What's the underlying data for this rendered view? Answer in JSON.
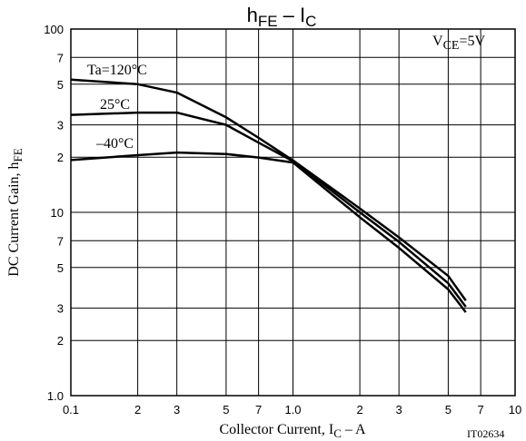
{
  "chart_data": {
    "type": "line",
    "title": [
      "h",
      "FE",
      " – I",
      "C"
    ],
    "x_label": [
      "Collector Current, I",
      "C",
      " – A"
    ],
    "y_label": [
      "DC Current Gain, h",
      "FE"
    ],
    "annotations": [
      [
        "V",
        "CE",
        "=5V"
      ],
      [
        "IT02634"
      ]
    ],
    "xlog": true,
    "ylog": true,
    "grid": true,
    "xlim": [
      0.1,
      10
    ],
    "ylim": [
      1,
      100
    ],
    "xticks": [
      0.1,
      {
        "value": 0.2,
        "label": "2"
      },
      {
        "value": 0.3,
        "label": "3"
      },
      {
        "value": 0.5,
        "label": "5"
      },
      {
        "value": 0.7,
        "label": "7"
      },
      {
        "value": 1,
        "label": "1.0"
      },
      2,
      3,
      5,
      7,
      10
    ],
    "yticks": [
      {
        "value": 1,
        "label": "1.0"
      },
      2,
      3,
      5,
      7,
      10,
      {
        "value": 20,
        "label": "2"
      },
      {
        "value": 30,
        "label": "3"
      },
      {
        "value": 50,
        "label": "5"
      },
      {
        "value": 70,
        "label": "7"
      },
      100
    ],
    "x": [
      0.1,
      0.2,
      0.3,
      0.5,
      0.7,
      1,
      2,
      3,
      5,
      6
    ],
    "series": [
      {
        "name": "Ta=120°C",
        "color": "#000000",
        "values": [
          53,
          50,
          45,
          33,
          25.5,
          19.2,
          10.5,
          7.3,
          4.5,
          3.3
        ]
      },
      {
        "name": "25°C",
        "color": "#000000",
        "values": [
          34,
          35,
          35,
          30,
          24,
          19,
          10,
          6.9,
          4.1,
          3.05
        ]
      },
      {
        "name": "–40°C",
        "color": "#000000",
        "values": [
          19.3,
          20.5,
          21.2,
          20.8,
          19.9,
          18.7,
          9.4,
          6.4,
          3.8,
          2.85
        ]
      }
    ]
  }
}
